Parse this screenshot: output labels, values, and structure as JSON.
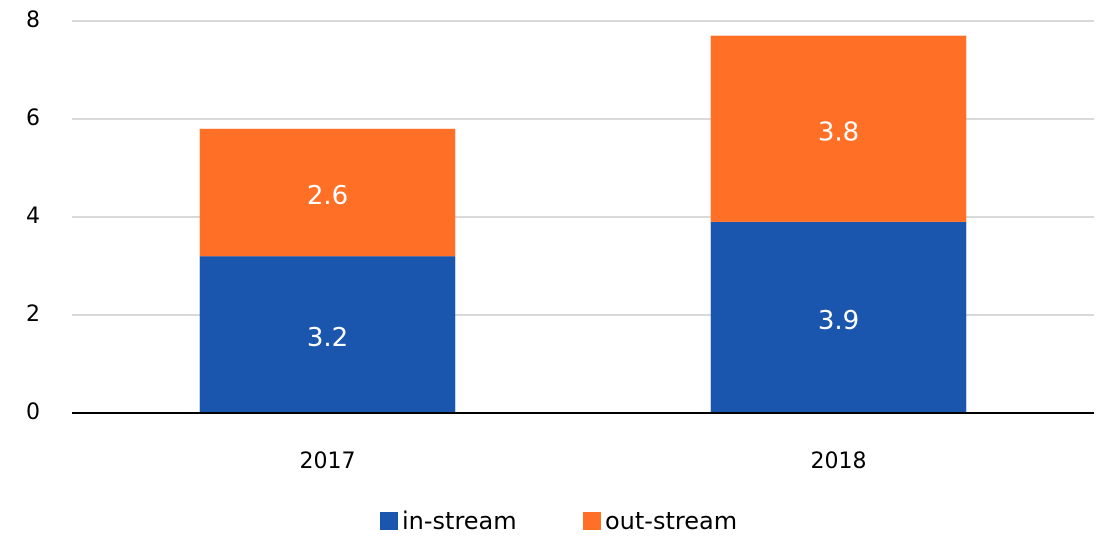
{
  "chart_data": {
    "type": "stacked_bar",
    "categories": [
      "2017",
      "2018"
    ],
    "series": [
      {
        "name": "in-stream",
        "color": "#1a56ad",
        "values": [
          3.2,
          3.9
        ]
      },
      {
        "name": "out-stream",
        "color": "#ff6f26",
        "values": [
          2.6,
          3.8
        ]
      }
    ],
    "ylim": [
      0,
      8
    ],
    "yticks": [
      0,
      2,
      4,
      6,
      8
    ],
    "grid": true,
    "legend": "bottom"
  }
}
